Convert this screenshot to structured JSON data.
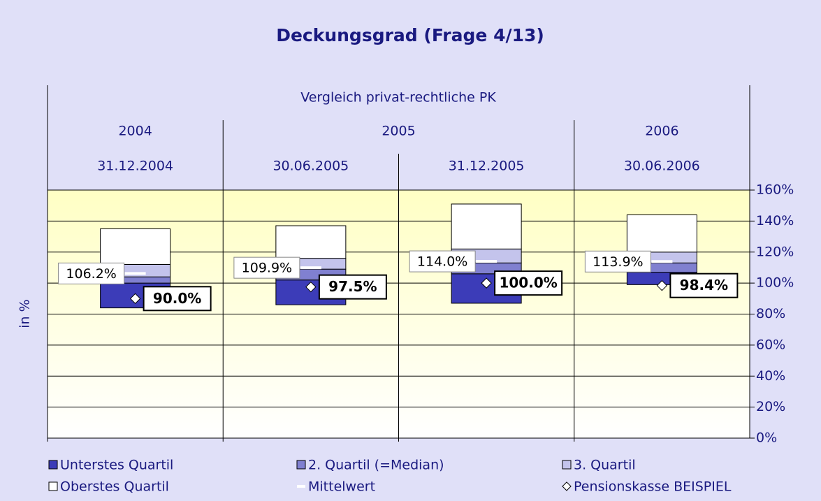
{
  "chart_data": {
    "type": "floating-stacked-bar",
    "title": "Deckungsgrad (Frage 4/13)",
    "header": "Vergleich privat-rechtliche PK",
    "groups": [
      {
        "label": "2004",
        "span": 1
      },
      {
        "label": "2005",
        "span": 2
      },
      {
        "label": "2006",
        "span": 1
      }
    ],
    "categories": [
      "31.12.2004",
      "30.06.2005",
      "31.12.2005",
      "30.06.2006"
    ],
    "y_label": "in %",
    "base": [
      84,
      86,
      87,
      99
    ],
    "series": [
      {
        "name": "Unterstes Quartil",
        "color": "#3c3cb8",
        "values": [
          16,
          16,
          19,
          8
        ]
      },
      {
        "name": "2. Quartil (=Median)",
        "color": "#8080d0",
        "values": [
          4,
          7,
          7,
          6
        ]
      },
      {
        "name": "3. Quartil",
        "color": "#c4c4ec",
        "values": [
          8,
          7,
          9,
          7
        ]
      },
      {
        "name": "Oberstes Quartil",
        "color": "#ffffff",
        "values": [
          23,
          21,
          29,
          24
        ]
      }
    ],
    "mean": {
      "name": "Mittelwert",
      "color": "#ffffff",
      "values": [
        106.2,
        109.9,
        114.0,
        113.9
      ],
      "value_labels": [
        "106.2%",
        "109.9%",
        "114.0%",
        "113.9%"
      ]
    },
    "marker": {
      "name": "Pensionskasse BEISPIEL",
      "color": "#ffffff",
      "values": [
        90.0,
        97.5,
        100.0,
        98.4
      ],
      "value_labels": [
        "90.0%",
        "97.5%",
        "100.0%",
        "98.4%"
      ]
    },
    "ylim": [
      0,
      160
    ],
    "yticks": [
      {
        "value": 0,
        "label": "0%"
      },
      {
        "value": 20,
        "label": "20%"
      },
      {
        "value": 40,
        "label": "40%"
      },
      {
        "value": 60,
        "label": "60%"
      },
      {
        "value": 80,
        "label": "80%"
      },
      {
        "value": 100,
        "label": "100%"
      },
      {
        "value": 120,
        "label": "120%"
      },
      {
        "value": 140,
        "label": "140%"
      },
      {
        "value": 160,
        "label": "160%"
      }
    ],
    "grid": true
  }
}
